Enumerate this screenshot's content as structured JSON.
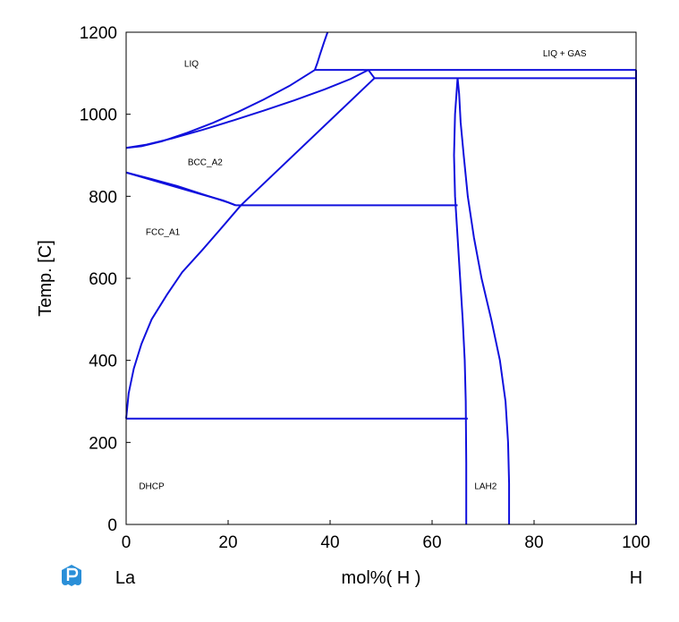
{
  "chart_data": {
    "type": "line",
    "title": "",
    "xlabel": "mol%( H )",
    "ylabel": "Temp. [C]",
    "xlim": [
      0,
      100
    ],
    "ylim": [
      0,
      1200
    ],
    "xticks": [
      "0",
      "20",
      "40",
      "60",
      "80",
      "100"
    ],
    "yticks": [
      "0",
      "200",
      "400",
      "600",
      "800",
      "1000",
      "1200"
    ],
    "x_end_labels": {
      "left": "La",
      "right": "H"
    },
    "line_color": "#1010dd",
    "grid": false,
    "regions": [
      {
        "label": "LIQ",
        "x": 12.8,
        "y": 1125
      },
      {
        "label": "LIQ + GAS",
        "x": 86,
        "y": 1150
      },
      {
        "label": "BCC_A2",
        "x": 15.5,
        "y": 885
      },
      {
        "label": "FCC_A1",
        "x": 7.2,
        "y": 715
      },
      {
        "label": "DHCP",
        "x": 5,
        "y": 95
      },
      {
        "label": "LAH2",
        "x": 70.5,
        "y": 95
      }
    ],
    "series": [
      {
        "values": [
          [
            37.0,
            1108
          ],
          [
            37.5,
            1125
          ],
          [
            38.0,
            1145
          ],
          [
            38.8,
            1175
          ],
          [
            39.5,
            1200
          ]
        ]
      },
      {
        "values": [
          [
            0,
            918
          ],
          [
            3,
            922
          ],
          [
            7,
            934
          ],
          [
            12,
            955
          ],
          [
            17,
            979
          ],
          [
            22,
            1006
          ],
          [
            27,
            1036
          ],
          [
            32,
            1069
          ],
          [
            37,
            1108
          ]
        ]
      },
      {
        "values": [
          [
            0,
            918
          ],
          [
            4,
            926
          ],
          [
            9,
            941
          ],
          [
            15,
            962
          ],
          [
            21,
            985
          ],
          [
            27,
            1009
          ],
          [
            33,
            1034
          ],
          [
            39,
            1061
          ],
          [
            44,
            1086
          ],
          [
            47.5,
            1108
          ]
        ]
      },
      {
        "values": [
          [
            37,
            1108
          ],
          [
            100,
            1108
          ]
        ]
      },
      {
        "values": [
          [
            47.5,
            1108
          ],
          [
            48.7,
            1088
          ]
        ]
      },
      {
        "values": [
          [
            48.7,
            1088
          ],
          [
            100,
            1088
          ]
        ]
      },
      {
        "values": [
          [
            0,
            858
          ],
          [
            5,
            842
          ],
          [
            10,
            825
          ],
          [
            15,
            805
          ],
          [
            20,
            785
          ],
          [
            21.5,
            778
          ]
        ]
      },
      {
        "values": [
          [
            0,
            858
          ],
          [
            5,
            840
          ],
          [
            10,
            822
          ],
          [
            15,
            804
          ],
          [
            19,
            790
          ],
          [
            21.5,
            778
          ]
        ]
      },
      {
        "values": [
          [
            21.5,
            778
          ],
          [
            65,
            778
          ]
        ]
      },
      {
        "values": [
          [
            22.5,
            778
          ],
          [
            48.7,
            1088
          ]
        ]
      },
      {
        "values": [
          [
            0,
            258
          ],
          [
            0.5,
            320
          ],
          [
            1.5,
            380
          ],
          [
            3,
            440
          ],
          [
            5,
            500
          ],
          [
            8,
            560
          ],
          [
            11,
            615
          ],
          [
            15,
            670
          ],
          [
            18.5,
            720
          ],
          [
            22.5,
            778
          ]
        ]
      },
      {
        "values": [
          [
            0,
            258
          ],
          [
            67,
            258
          ]
        ]
      },
      {
        "values": [
          [
            65,
            1088
          ],
          [
            64.5,
            1000
          ],
          [
            64.3,
            900
          ],
          [
            64.5,
            800
          ],
          [
            65,
            700
          ],
          [
            65.5,
            600
          ],
          [
            66,
            500
          ],
          [
            66.4,
            400
          ],
          [
            66.6,
            300
          ],
          [
            66.7,
            150
          ],
          [
            66.7,
            0
          ]
        ]
      },
      {
        "values": [
          [
            65,
            1088
          ],
          [
            65.3,
            1050
          ],
          [
            65.6,
            980
          ],
          [
            66.2,
            900
          ],
          [
            67,
            800
          ],
          [
            68.2,
            700
          ],
          [
            69.7,
            600
          ],
          [
            71.6,
            500
          ],
          [
            73.3,
            400
          ],
          [
            74.4,
            300
          ],
          [
            74.9,
            200
          ],
          [
            75.1,
            100
          ],
          [
            75.1,
            0
          ]
        ]
      },
      {
        "values": [
          [
            100,
            0
          ],
          [
            100,
            1108
          ]
        ]
      }
    ]
  }
}
